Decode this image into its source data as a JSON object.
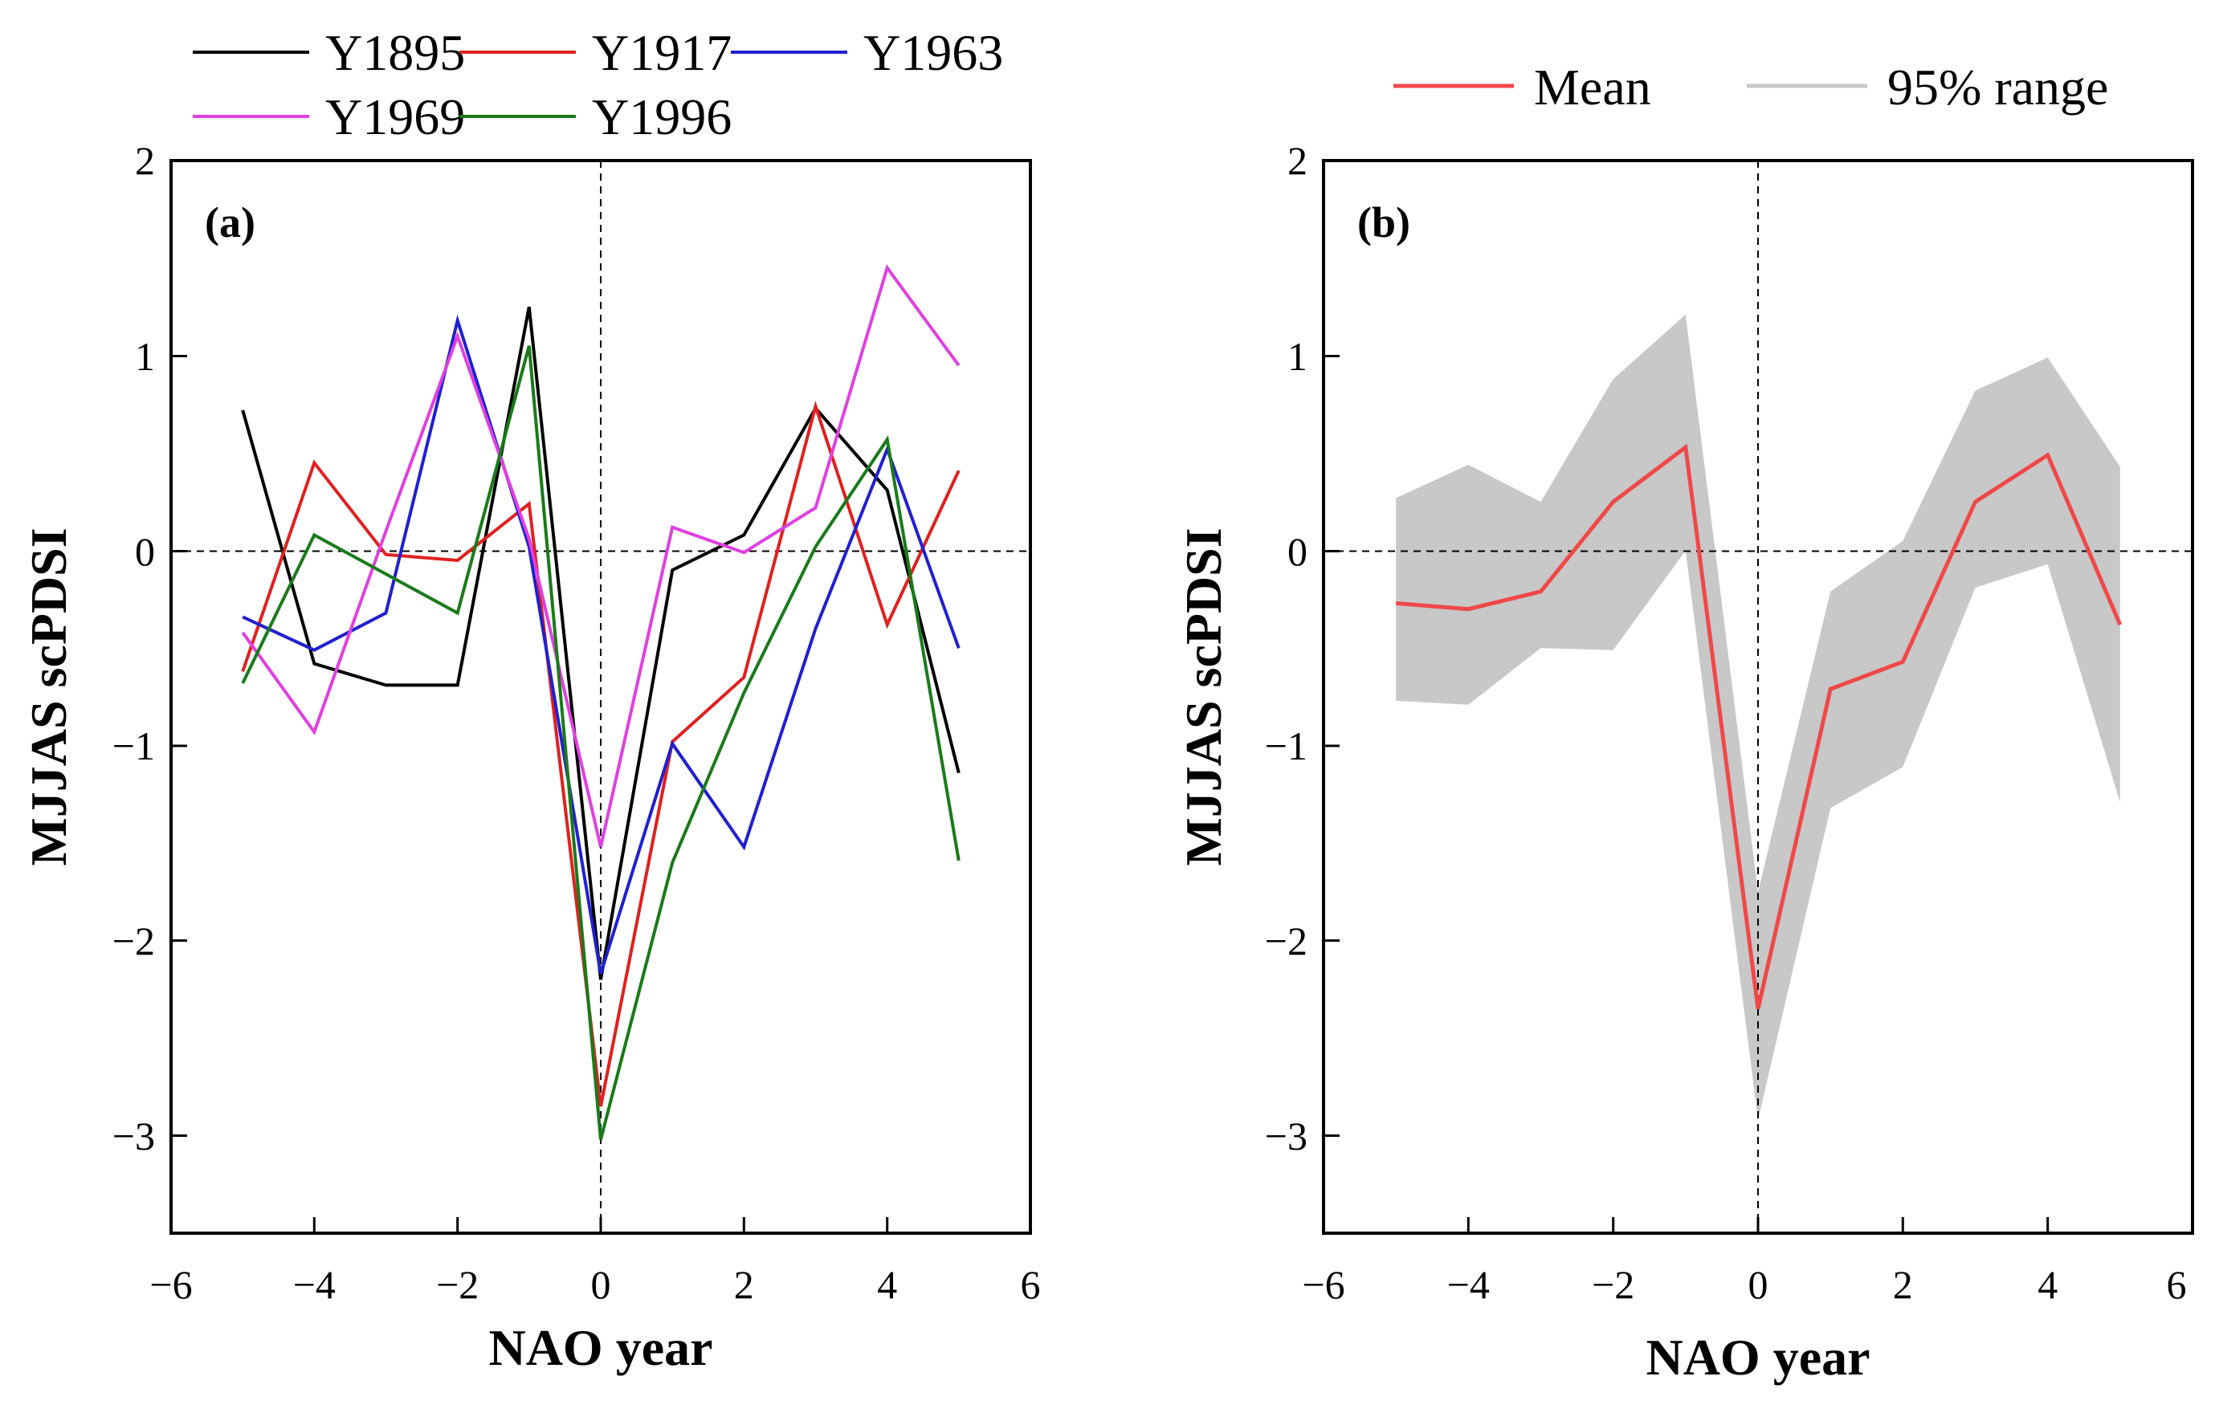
{
  "chart_data": [
    {
      "type": "line",
      "panel_label": "(a)",
      "xlabel": "NAO year",
      "ylabel": "MJJAS scPDSI",
      "xlim": [
        -6,
        6
      ],
      "ylim": [
        -3.5,
        2
      ],
      "xticks": [
        -6,
        -4,
        -2,
        0,
        2,
        4,
        6
      ],
      "yticks": [
        -3,
        -2,
        -1,
        0,
        1,
        2
      ],
      "xtick_labels": [
        "−6",
        "−4",
        "−2",
        "0",
        "2",
        "4",
        "6"
      ],
      "ytick_labels": [
        "−3",
        "−2",
        "−1",
        "0",
        "1",
        "2"
      ],
      "reference_lines": {
        "x": 0,
        "y": 0
      },
      "legend_position": "above",
      "x": [
        -5,
        -4,
        -3,
        -2,
        -1,
        0,
        1,
        2,
        3,
        4,
        5
      ],
      "series": [
        {
          "name": "Y1895",
          "color": "#000000",
          "values": [
            0.72,
            -0.58,
            -0.69,
            -0.69,
            1.25,
            -2.2,
            -0.1,
            0.08,
            0.73,
            0.31,
            -1.14
          ]
        },
        {
          "name": "Y1917",
          "color": "#e02020",
          "values": [
            -0.62,
            0.45,
            -0.02,
            -0.05,
            0.24,
            -2.85,
            -0.98,
            -0.65,
            0.74,
            -0.38,
            0.41
          ]
        },
        {
          "name": "Y1963",
          "color": "#2020d0",
          "values": [
            -0.34,
            -0.51,
            -0.32,
            1.18,
            0.02,
            -2.17,
            -0.99,
            -1.52,
            -0.4,
            0.52,
            -0.5
          ]
        },
        {
          "name": "Y1969",
          "color": "#e040e0",
          "values": [
            -0.42,
            -0.93,
            0.1,
            1.1,
            0.06,
            -1.52,
            0.12,
            -0.01,
            0.22,
            1.45,
            0.95
          ]
        },
        {
          "name": "Y1996",
          "color": "#1a7a1a",
          "values": [
            -0.68,
            0.08,
            -0.12,
            -0.32,
            1.05,
            -3.02,
            -1.6,
            -0.73,
            0.02,
            0.57,
            -1.59
          ]
        }
      ]
    },
    {
      "type": "area",
      "panel_label": "(b)",
      "xlabel": "NAO year",
      "ylabel": "MJJAS scPDSI",
      "xlim": [
        -6,
        6
      ],
      "ylim": [
        -3.5,
        2
      ],
      "xticks": [
        -6,
        -4,
        -2,
        0,
        2,
        4,
        6
      ],
      "yticks": [
        -3,
        -2,
        -1,
        0,
        1,
        2
      ],
      "xtick_labels": [
        "−6",
        "−4",
        "−2",
        "0",
        "2",
        "4",
        "6"
      ],
      "ytick_labels": [
        "−3",
        "−2",
        "−1",
        "0",
        "1",
        "2"
      ],
      "reference_lines": {
        "x": 0,
        "y": 0
      },
      "legend_position": "above",
      "x": [
        -5,
        -4,
        -3,
        -2,
        -1,
        0,
        1,
        2,
        3,
        4,
        5
      ],
      "series": [
        {
          "name": "Mean",
          "color": "#f04848",
          "values": [
            -0.27,
            -0.3,
            -0.21,
            0.25,
            0.53,
            -2.35,
            -0.71,
            -0.57,
            0.25,
            0.49,
            -0.38
          ]
        }
      ],
      "range": {
        "name": "95% range",
        "color": "#c8c8c8",
        "upper": [
          0.27,
          0.44,
          0.25,
          0.88,
          1.21,
          -1.75,
          -0.21,
          0.05,
          0.82,
          0.99,
          0.43
        ],
        "lower": [
          -0.77,
          -0.79,
          -0.5,
          -0.51,
          0.0,
          -2.92,
          -1.32,
          -1.11,
          -0.19,
          -0.07,
          -1.29
        ]
      }
    }
  ]
}
